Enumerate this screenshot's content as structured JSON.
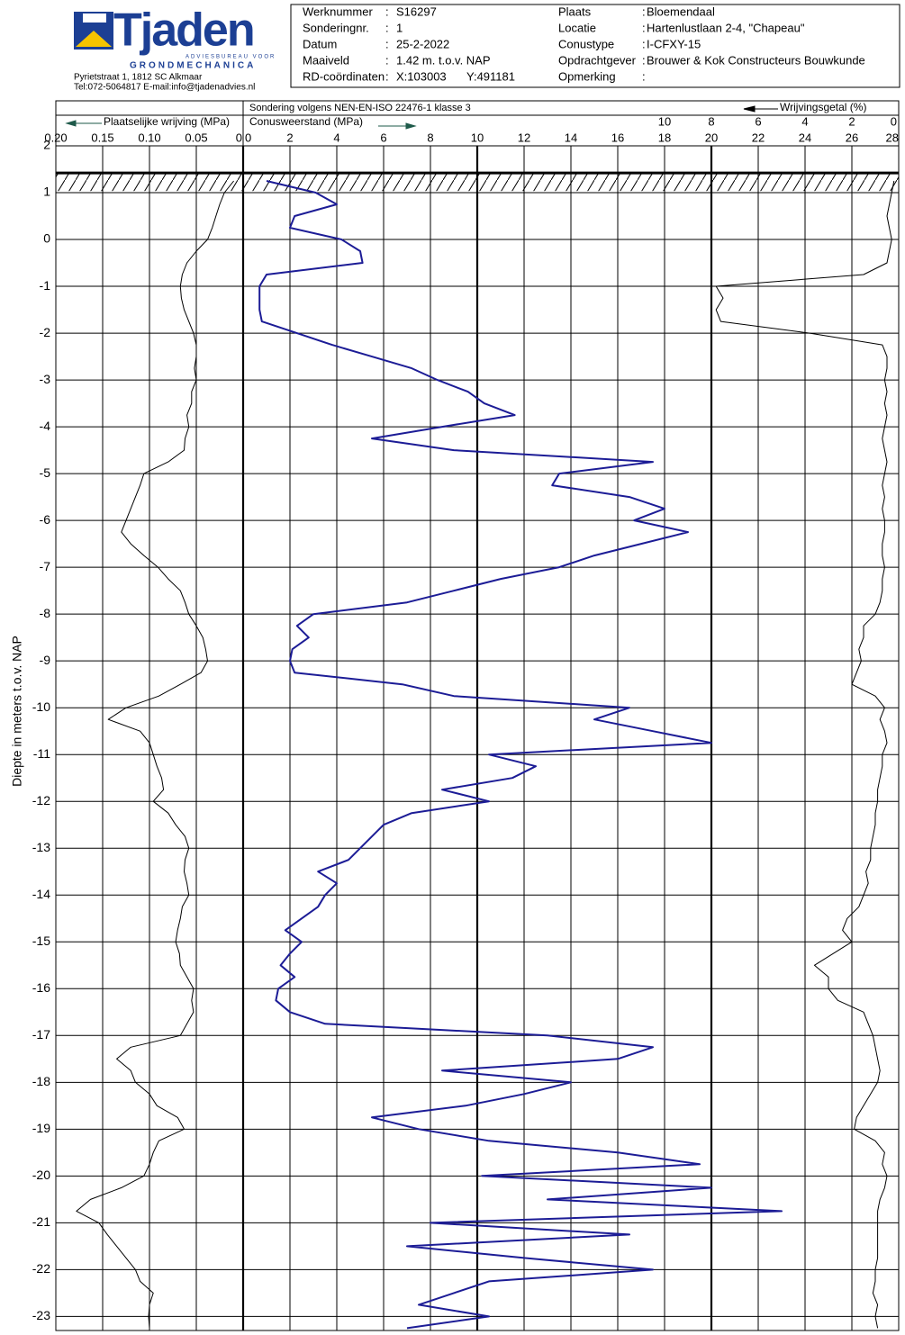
{
  "header": {
    "company": "Tjaden",
    "tagline": "ADVIESBUREAU VOOR",
    "specialty": "GRONDMECHANICA",
    "address": "Pyrietstraat 1, 1812 SC Alkmaar",
    "contact": "Tel:072-5064817 E-mail:info@tjadenadvies.nl",
    "separator": ":",
    "fields_left": [
      {
        "label": "Werknummer",
        "value": "S16297"
      },
      {
        "label": "Sonderingnr.",
        "value": "1"
      },
      {
        "label": "Datum",
        "value": "25-2-2022"
      },
      {
        "label": "Maaiveld",
        "value": "1.42  m.  t.o.v. NAP"
      },
      {
        "label": "RD-coördinaten",
        "value": "X:103003",
        "value2": "Y:491181"
      }
    ],
    "fields_right": [
      {
        "label": "Plaats",
        "value": "Bloemendaal"
      },
      {
        "label": "Locatie",
        "value": "Hartenlustlaan 2-4, \"Chapeau\""
      },
      {
        "label": "Conustype",
        "value": "I-CFXY-15"
      },
      {
        "label": "Opdrachtgever",
        "value": "Brouwer & Kok Constructeurs  Bouwkunde"
      },
      {
        "label": "Opmerking"
      }
    ]
  },
  "chart_data": {
    "type": "line",
    "title": "Sondering volgens NEN-EN-ISO 22476-1 klasse 3",
    "ylabel": "Diepte in meters t.o.v. NAP",
    "ylim": [
      -23.3,
      2
    ],
    "yticks": [
      2,
      1,
      0,
      -1,
      -2,
      -3,
      -4,
      -5,
      -6,
      -7,
      -8,
      -9,
      -10,
      -11,
      -12,
      -13,
      -14,
      -15,
      -16,
      -17,
      -18,
      -19,
      -20,
      -21,
      -22,
      -23
    ],
    "xlim": [
      0,
      28
    ],
    "xticks": [
      0,
      2,
      4,
      6,
      8,
      10,
      12,
      14,
      16,
      18,
      20,
      22,
      24,
      26,
      28
    ],
    "x2lim": [
      0.2,
      0
    ],
    "x2ticks": [
      {
        "value": 0.2,
        "label": "0.20"
      },
      0.15,
      {
        "value": 0.1,
        "label": "0.10"
      },
      0.05,
      0
    ],
    "x3lim": [
      10,
      0
    ],
    "x3ticks": [
      10,
      8,
      6,
      4,
      2,
      0
    ],
    "grid": true,
    "ground_level": 1.42,
    "y": [
      1.25,
      1,
      0.75,
      0.5,
      0.25,
      0,
      -0.25,
      -0.5,
      -0.75,
      -1,
      -1.25,
      -1.5,
      -1.75,
      -2,
      -2.25,
      -2.5,
      -2.75,
      -3,
      -3.25,
      -3.5,
      -3.75,
      -4,
      -4.25,
      -4.5,
      -4.75,
      -5,
      -5.25,
      -5.5,
      -5.75,
      -6,
      -6.25,
      -6.5,
      -6.75,
      -7,
      -7.25,
      -7.5,
      -7.75,
      -8,
      -8.25,
      -8.5,
      -8.75,
      -9,
      -9.25,
      -9.5,
      -9.75,
      -10,
      -10.25,
      -10.5,
      -10.75,
      -11,
      -11.25,
      -11.5,
      -11.75,
      -12,
      -12.25,
      -12.5,
      -12.75,
      -13,
      -13.25,
      -13.5,
      -13.75,
      -14,
      -14.25,
      -14.5,
      -14.75,
      -15,
      -15.25,
      -15.5,
      -15.75,
      -16,
      -16.25,
      -16.5,
      -16.75,
      -17,
      -17.25,
      -17.5,
      -17.75,
      -18,
      -18.25,
      -18.5,
      -18.75,
      -19,
      -19.25,
      -19.5,
      -19.75,
      -20,
      -20.25,
      -20.5,
      -20.75,
      -21,
      -21.25,
      -21.5,
      -21.75,
      -22,
      -22.25,
      -22.5,
      -22.75,
      -23,
      -23.25
    ],
    "series": [
      {
        "name": "Conusweerstand (MPa)",
        "axis": "x",
        "color": "#1c1c96",
        "values": [
          1.0,
          3.1,
          4.0,
          2.2,
          2.0,
          4.2,
          5.0,
          5.1,
          1.0,
          0.7,
          0.7,
          0.7,
          0.8,
          2.3,
          3.8,
          5.5,
          7.2,
          8.3,
          9.6,
          10.3,
          11.6,
          8.5,
          5.5,
          9.0,
          17.5,
          13.5,
          13.2,
          16.5,
          18.0,
          16.7,
          19.0,
          17.0,
          15.0,
          13.5,
          11.0,
          9.0,
          7.0,
          3.0,
          2.3,
          2.8,
          2.1,
          2.0,
          2.2,
          6.8,
          9.0,
          16.5,
          15.0,
          17.5,
          20.0,
          10.5,
          12.5,
          11.5,
          8.5,
          10.5,
          7.2,
          6.0,
          5.5,
          5.0,
          4.5,
          3.2,
          4.0,
          3.5,
          3.2,
          2.5,
          1.8,
          2.5,
          2.0,
          1.6,
          2.2,
          1.5,
          1.4,
          2.0,
          3.5,
          13.0,
          17.5,
          16.0,
          8.5,
          14.0,
          12.0,
          9.5,
          5.5,
          7.5,
          10.5,
          16.0,
          19.5,
          10.2,
          20.0,
          13.0,
          23.0,
          8.0,
          16.5,
          7.0,
          12.0,
          17.5,
          10.5,
          9.0,
          7.5,
          10.5,
          7.0
        ]
      },
      {
        "name": "Plaatselijke wrijving (MPa)",
        "axis": "x2",
        "color": "#000000",
        "values": [
          0.01,
          0.02,
          0.025,
          0.029,
          0.033,
          0.038,
          0.05,
          0.06,
          0.065,
          0.067,
          0.066,
          0.063,
          0.058,
          0.053,
          0.05,
          0.05,
          0.052,
          0.05,
          0.055,
          0.055,
          0.06,
          0.058,
          0.062,
          0.063,
          0.08,
          0.106,
          0.11,
          0.115,
          0.12,
          0.125,
          0.13,
          0.12,
          0.106,
          0.091,
          0.08,
          0.067,
          0.062,
          0.058,
          0.05,
          0.043,
          0.04,
          0.038,
          0.045,
          0.067,
          0.09,
          0.125,
          0.144,
          0.11,
          0.1,
          0.096,
          0.092,
          0.087,
          0.085,
          0.096,
          0.08,
          0.072,
          0.062,
          0.058,
          0.062,
          0.063,
          0.06,
          0.058,
          0.065,
          0.067,
          0.07,
          0.072,
          0.068,
          0.067,
          0.06,
          0.053,
          0.055,
          0.053,
          0.06,
          0.067,
          0.12,
          0.135,
          0.12,
          0.115,
          0.1,
          0.092,
          0.07,
          0.063,
          0.09,
          0.096,
          0.1,
          0.106,
          0.13,
          0.163,
          0.178,
          0.154,
          0.145,
          0.135,
          0.125,
          0.115,
          0.11,
          0.096,
          0.1,
          0.101,
          0.1
        ]
      },
      {
        "name": "Wrijvingsgetal (%)",
        "axis": "x3",
        "color": "#000000",
        "values": [
          0.2,
          0.3,
          0.4,
          0.5,
          0.4,
          0.3,
          0.4,
          0.5,
          1.5,
          7.8,
          7.5,
          7.8,
          7.6,
          3.8,
          0.7,
          0.5,
          0.5,
          0.6,
          0.5,
          0.6,
          0.5,
          0.6,
          0.7,
          0.6,
          0.5,
          0.6,
          0.7,
          0.6,
          0.7,
          0.6,
          0.6,
          0.7,
          0.7,
          0.6,
          0.7,
          0.7,
          0.8,
          1.0,
          1.5,
          1.5,
          1.7,
          1.6,
          1.8,
          2.0,
          1.0,
          0.6,
          0.8,
          0.6,
          0.5,
          0.7,
          0.7,
          0.8,
          0.9,
          0.9,
          1.0,
          1.0,
          1.1,
          1.2,
          1.2,
          1.4,
          1.3,
          1.5,
          1.7,
          2.2,
          2.4,
          2.0,
          2.8,
          3.6,
          3.0,
          3.0,
          2.6,
          1.5,
          1.3,
          1.1,
          1.0,
          0.9,
          0.8,
          0.9,
          1.2,
          1.5,
          1.8,
          1.9,
          1.0,
          0.6,
          0.7,
          0.5,
          0.6,
          0.8,
          0.9,
          0.9,
          0.9,
          0.9,
          0.9,
          1.0,
          1.0,
          1.1,
          0.9,
          1.0,
          0.9
        ]
      }
    ]
  }
}
